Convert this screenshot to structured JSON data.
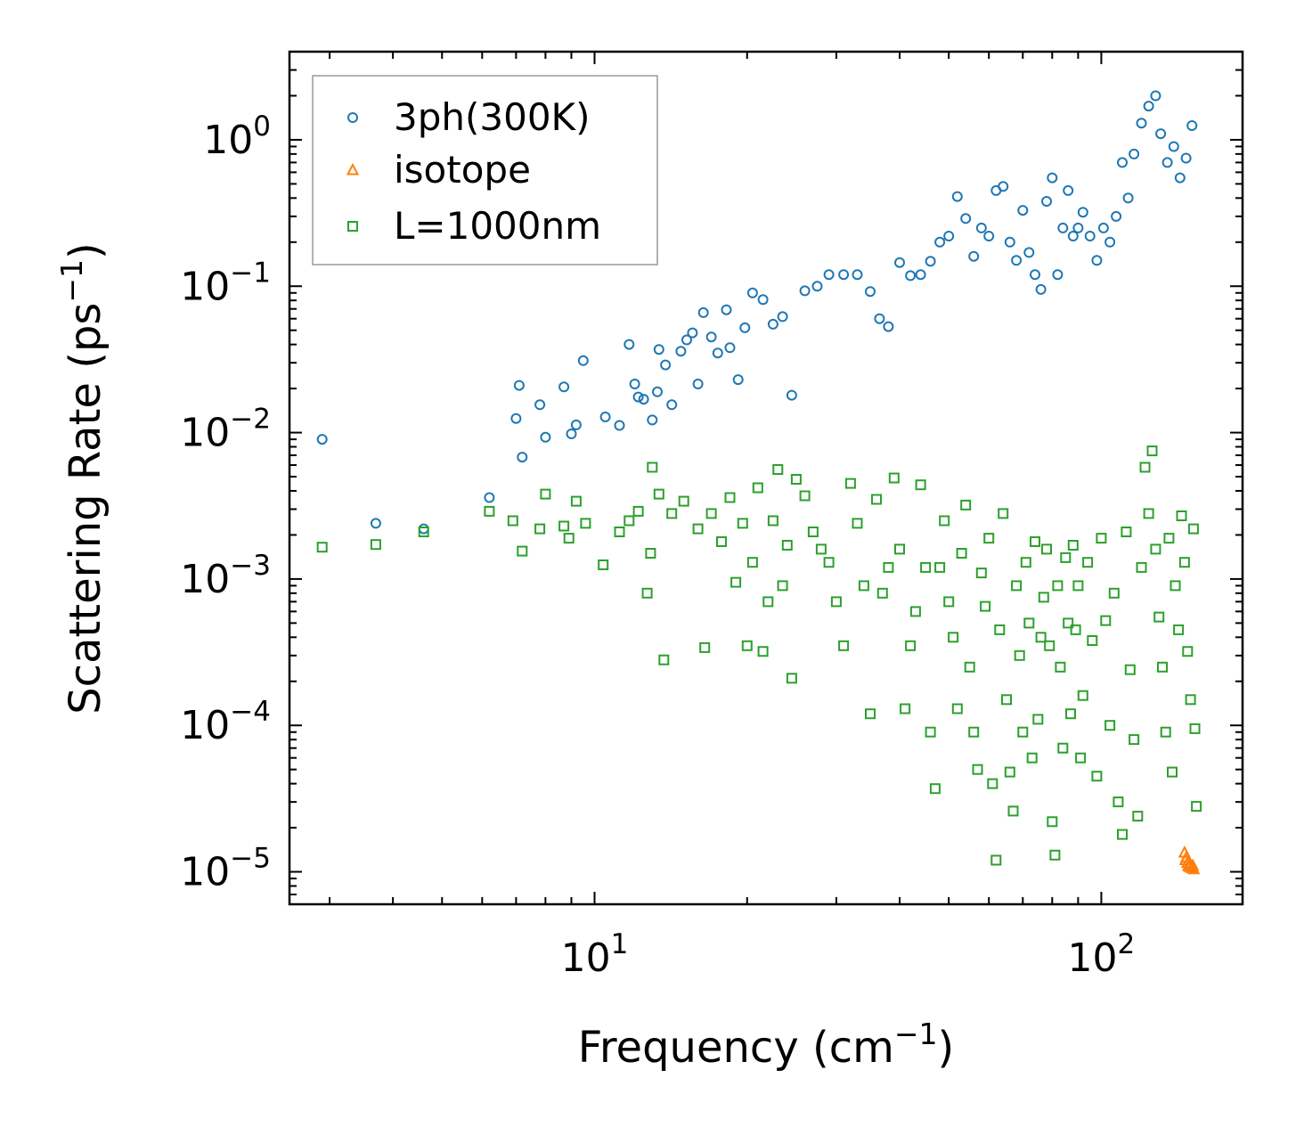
{
  "chart_data": {
    "type": "scatter",
    "x_scale": "log",
    "y_scale": "log",
    "xlim": [
      2.5,
      190
    ],
    "ylim": [
      6e-06,
      4
    ],
    "xlabel": {
      "main": "Frequency (cm",
      "sup": "−1",
      "close": ")"
    },
    "ylabel": {
      "main": "Scattering Rate (ps",
      "sup": "−1",
      "close": ")"
    },
    "x_ticks": [
      {
        "value": 10,
        "base": "10",
        "exp": "1"
      },
      {
        "value": 100,
        "base": "10",
        "exp": "2"
      }
    ],
    "y_ticks": [
      {
        "value": 1,
        "base": "10",
        "exp": "0"
      },
      {
        "value": 0.1,
        "base": "10",
        "exp": "−1"
      },
      {
        "value": 0.01,
        "base": "10",
        "exp": "−2"
      },
      {
        "value": 0.001,
        "base": "10",
        "exp": "−3"
      },
      {
        "value": 0.0001,
        "base": "10",
        "exp": "−4"
      },
      {
        "value": 1e-05,
        "base": "10",
        "exp": "−5"
      }
    ],
    "legend_position": "top-left",
    "series": [
      {
        "name": "3ph(300K)",
        "marker": "circle",
        "color": "#1f77b4",
        "points": [
          [
            2.9,
            0.009
          ],
          [
            3.7,
            0.0024
          ],
          [
            4.6,
            0.0022
          ],
          [
            6.2,
            0.0036
          ],
          [
            7.0,
            0.0125
          ],
          [
            7.1,
            0.021
          ],
          [
            7.2,
            0.0068
          ],
          [
            7.8,
            0.0155
          ],
          [
            8.0,
            0.0093
          ],
          [
            8.7,
            0.0205
          ],
          [
            9.0,
            0.0098
          ],
          [
            9.2,
            0.0113
          ],
          [
            9.5,
            0.031
          ],
          [
            10.5,
            0.0128
          ],
          [
            11.2,
            0.0112
          ],
          [
            11.7,
            0.04
          ],
          [
            12.0,
            0.0215
          ],
          [
            12.2,
            0.0175
          ],
          [
            12.5,
            0.0169
          ],
          [
            13.0,
            0.0122
          ],
          [
            13.3,
            0.019
          ],
          [
            13.4,
            0.037
          ],
          [
            13.8,
            0.029
          ],
          [
            14.2,
            0.0155
          ],
          [
            14.8,
            0.036
          ],
          [
            15.2,
            0.043
          ],
          [
            15.6,
            0.048
          ],
          [
            16.0,
            0.0215
          ],
          [
            16.4,
            0.066
          ],
          [
            17.0,
            0.045
          ],
          [
            17.5,
            0.035
          ],
          [
            18.2,
            0.069
          ],
          [
            18.5,
            0.038
          ],
          [
            19.2,
            0.023
          ],
          [
            19.8,
            0.052
          ],
          [
            20.5,
            0.09
          ],
          [
            21.5,
            0.081
          ],
          [
            22.5,
            0.055
          ],
          [
            23.5,
            0.062
          ],
          [
            24.5,
            0.018
          ],
          [
            26.0,
            0.093
          ],
          [
            27.5,
            0.1
          ],
          [
            29.0,
            0.12
          ],
          [
            31.0,
            0.12
          ],
          [
            33.0,
            0.12
          ],
          [
            35.0,
            0.092
          ],
          [
            36.5,
            0.06
          ],
          [
            38.0,
            0.053
          ],
          [
            40.0,
            0.145
          ],
          [
            42.0,
            0.118
          ],
          [
            44.0,
            0.12
          ],
          [
            46.0,
            0.148
          ],
          [
            48.0,
            0.2
          ],
          [
            50.0,
            0.22
          ],
          [
            52.0,
            0.41
          ],
          [
            54.0,
            0.29
          ],
          [
            56.0,
            0.16
          ],
          [
            58.0,
            0.25
          ],
          [
            60.0,
            0.22
          ],
          [
            62.0,
            0.45
          ],
          [
            64.0,
            0.48
          ],
          [
            66.0,
            0.2
          ],
          [
            68.0,
            0.15
          ],
          [
            70.0,
            0.33
          ],
          [
            72.0,
            0.17
          ],
          [
            74.0,
            0.12
          ],
          [
            76.0,
            0.095
          ],
          [
            78.0,
            0.38
          ],
          [
            80.0,
            0.55
          ],
          [
            82.0,
            0.12
          ],
          [
            84.0,
            0.25
          ],
          [
            86.0,
            0.45
          ],
          [
            88.0,
            0.22
          ],
          [
            90.0,
            0.25
          ],
          [
            92.0,
            0.32
          ],
          [
            95.0,
            0.22
          ],
          [
            98.0,
            0.15
          ],
          [
            101.0,
            0.25
          ],
          [
            104.0,
            0.2
          ],
          [
            107.0,
            0.3
          ],
          [
            110.0,
            0.7
          ],
          [
            113.0,
            0.4
          ],
          [
            116.0,
            0.8
          ],
          [
            120.0,
            1.3
          ],
          [
            124.0,
            1.7
          ],
          [
            128.0,
            2.0
          ],
          [
            131.0,
            1.1
          ],
          [
            135.0,
            0.7
          ],
          [
            139.0,
            0.9
          ],
          [
            143.0,
            0.55
          ],
          [
            147.0,
            0.75
          ],
          [
            151.0,
            1.25
          ]
        ]
      },
      {
        "name": "isotope",
        "marker": "triangle",
        "color": "#ff7f0e",
        "points": [
          [
            146.0,
            1.35e-05
          ],
          [
            146.6,
            1.2e-05
          ],
          [
            147.2,
            1.25e-05
          ],
          [
            147.8,
            1.15e-05
          ],
          [
            148.5,
            1.1e-05
          ],
          [
            149.2,
            1.08e-05
          ],
          [
            150.0,
            1.12e-05
          ],
          [
            150.8,
            1.06e-05
          ],
          [
            151.5,
            1.1e-05
          ],
          [
            152.2,
            1.04e-05
          ]
        ]
      },
      {
        "name": "L=1000nm",
        "marker": "square",
        "color": "#2ca02c",
        "points": [
          [
            2.9,
            0.00165
          ],
          [
            3.7,
            0.00172
          ],
          [
            4.6,
            0.0021
          ],
          [
            6.2,
            0.0029
          ],
          [
            6.9,
            0.0025
          ],
          [
            7.2,
            0.00155
          ],
          [
            7.8,
            0.0022
          ],
          [
            8.0,
            0.0038
          ],
          [
            8.7,
            0.0023
          ],
          [
            8.9,
            0.0019
          ],
          [
            9.2,
            0.0034
          ],
          [
            9.6,
            0.0024
          ],
          [
            10.4,
            0.00125
          ],
          [
            11.2,
            0.0021
          ],
          [
            11.7,
            0.0025
          ],
          [
            12.2,
            0.0029
          ],
          [
            12.7,
            0.0008
          ],
          [
            12.9,
            0.0015
          ],
          [
            13.0,
            0.0058
          ],
          [
            13.4,
            0.0038
          ],
          [
            13.7,
            0.00028
          ],
          [
            14.2,
            0.0028
          ],
          [
            15.0,
            0.0034
          ],
          [
            16.0,
            0.0022
          ],
          [
            16.5,
            0.00034
          ],
          [
            17.0,
            0.0028
          ],
          [
            17.8,
            0.0018
          ],
          [
            18.5,
            0.0036
          ],
          [
            19.0,
            0.00095
          ],
          [
            19.6,
            0.0024
          ],
          [
            20.0,
            0.00035
          ],
          [
            20.5,
            0.0013
          ],
          [
            21.0,
            0.0042
          ],
          [
            21.5,
            0.00032
          ],
          [
            22.0,
            0.0007
          ],
          [
            22.5,
            0.0025
          ],
          [
            23.0,
            0.0056
          ],
          [
            23.5,
            0.0009
          ],
          [
            24.0,
            0.0017
          ],
          [
            24.5,
            0.00021
          ],
          [
            25.0,
            0.0048
          ],
          [
            26.0,
            0.0037
          ],
          [
            27.0,
            0.0021
          ],
          [
            28.0,
            0.0016
          ],
          [
            29.0,
            0.0013
          ],
          [
            30.0,
            0.0007
          ],
          [
            31.0,
            0.00035
          ],
          [
            32.0,
            0.0045
          ],
          [
            33.0,
            0.0024
          ],
          [
            34.0,
            0.0009
          ],
          [
            35.0,
            0.00012
          ],
          [
            36.0,
            0.0035
          ],
          [
            37.0,
            0.0008
          ],
          [
            38.0,
            0.0012
          ],
          [
            39.0,
            0.0049
          ],
          [
            40.0,
            0.0016
          ],
          [
            41.0,
            0.00013
          ],
          [
            42.0,
            0.00035
          ],
          [
            43.0,
            0.0006
          ],
          [
            44.0,
            0.0044
          ],
          [
            45.0,
            0.0012
          ],
          [
            46.0,
            9e-05
          ],
          [
            47.0,
            3.7e-05
          ],
          [
            48.0,
            0.0012
          ],
          [
            49.0,
            0.0025
          ],
          [
            50.0,
            0.0007
          ],
          [
            51.0,
            0.0004
          ],
          [
            52.0,
            0.00013
          ],
          [
            53.0,
            0.0015
          ],
          [
            54.0,
            0.0032
          ],
          [
            55.0,
            0.00025
          ],
          [
            56.0,
            9e-05
          ],
          [
            57.0,
            5e-05
          ],
          [
            58.0,
            0.0011
          ],
          [
            59.0,
            0.00065
          ],
          [
            60.0,
            0.0019
          ],
          [
            61.0,
            4e-05
          ],
          [
            62.0,
            1.2e-05
          ],
          [
            63.0,
            0.00045
          ],
          [
            64.0,
            0.0028
          ],
          [
            65.0,
            0.00015
          ],
          [
            66.0,
            4.8e-05
          ],
          [
            67.0,
            2.6e-05
          ],
          [
            68.0,
            0.0009
          ],
          [
            69.0,
            0.0003
          ],
          [
            70.0,
            9e-05
          ],
          [
            71.0,
            0.0013
          ],
          [
            72.0,
            0.0005
          ],
          [
            73.0,
            6e-05
          ],
          [
            74.0,
            0.0018
          ],
          [
            75.0,
            0.00011
          ],
          [
            76.0,
            0.0004
          ],
          [
            77.0,
            0.00075
          ],
          [
            78.0,
            0.0016
          ],
          [
            79.0,
            0.00035
          ],
          [
            80.0,
            2.2e-05
          ],
          [
            81.0,
            1.3e-05
          ],
          [
            82.0,
            0.0009
          ],
          [
            83.0,
            0.00025
          ],
          [
            84.0,
            7e-05
          ],
          [
            85.0,
            0.0014
          ],
          [
            86.0,
            0.0005
          ],
          [
            87.0,
            0.00012
          ],
          [
            88.0,
            0.0017
          ],
          [
            89.0,
            0.00045
          ],
          [
            90.0,
            0.0009
          ],
          [
            91.0,
            6e-05
          ],
          [
            92.0,
            0.00016
          ],
          [
            94.0,
            0.0013
          ],
          [
            96.0,
            0.00038
          ],
          [
            98.0,
            4.5e-05
          ],
          [
            100.0,
            0.0019
          ],
          [
            102.0,
            0.00052
          ],
          [
            104.0,
            0.0001
          ],
          [
            106.0,
            0.0008
          ],
          [
            108.0,
            3e-05
          ],
          [
            110.0,
            1.8e-05
          ],
          [
            112.0,
            0.0021
          ],
          [
            114.0,
            0.00024
          ],
          [
            116.0,
            8e-05
          ],
          [
            118.0,
            2.4e-05
          ],
          [
            120.0,
            0.0012
          ],
          [
            122.0,
            0.0058
          ],
          [
            124.0,
            0.0028
          ],
          [
            126.0,
            0.0075
          ],
          [
            128.0,
            0.0016
          ],
          [
            130.0,
            0.00055
          ],
          [
            132.0,
            0.00025
          ],
          [
            134.0,
            9e-05
          ],
          [
            136.0,
            0.0019
          ],
          [
            138.0,
            4.8e-05
          ],
          [
            140.0,
            0.0009
          ],
          [
            142.0,
            0.00045
          ],
          [
            144.0,
            0.0027
          ],
          [
            146.0,
            0.0013
          ],
          [
            148.0,
            0.00032
          ],
          [
            150.0,
            0.00015
          ],
          [
            152.0,
            0.0022
          ],
          [
            153.0,
            9.5e-05
          ],
          [
            154.0,
            2.8e-05
          ]
        ]
      }
    ]
  }
}
